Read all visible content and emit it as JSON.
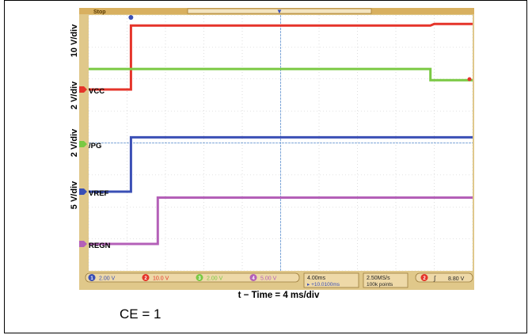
{
  "chart_data": {
    "type": "line",
    "title": "",
    "xlabel": "t − Time = 4 ms/div",
    "x_unit": "ms",
    "x_range": [
      0,
      40
    ],
    "divisions_x": 10,
    "divisions_y": 8,
    "grid": true,
    "series": [
      {
        "name": "VCC",
        "scale_label": "10 V/div",
        "color": "#e5342a",
        "points": [
          [
            0,
            0
          ],
          [
            4.4,
            0
          ],
          [
            4.4,
            2.0
          ],
          [
            35.6,
            2.0
          ],
          [
            36.0,
            2.05
          ],
          [
            40,
            2.05
          ]
        ]
      },
      {
        "name": "/PG",
        "scale_label": "2 V/div",
        "color": "#7ac943",
        "points": [
          [
            0,
            2.35
          ],
          [
            35.6,
            2.35
          ],
          [
            35.6,
            2.0
          ],
          [
            40,
            2.0
          ]
        ]
      },
      {
        "name": "VREF",
        "scale_label": "2 V/div",
        "color": "#3a4fb5",
        "points": [
          [
            0,
            0
          ],
          [
            4.4,
            0
          ],
          [
            4.4,
            1.7
          ],
          [
            40,
            1.7
          ]
        ]
      },
      {
        "name": "REGN",
        "scale_label": "5 V/div",
        "color": "#b460b8",
        "points": [
          [
            0,
            0
          ],
          [
            7.2,
            0
          ],
          [
            7.2,
            1.45
          ],
          [
            40,
            1.45
          ]
        ]
      }
    ]
  },
  "scope": {
    "run_state": "Stop",
    "channels": [
      {
        "id": "1",
        "value": "2.00 V",
        "color": "#3a4fb5"
      },
      {
        "id": "2",
        "value": "10.0 V",
        "color": "#e5342a"
      },
      {
        "id": "3",
        "value": "2.00 V",
        "color": "#7ac943"
      },
      {
        "id": "4",
        "value": "5.00 V",
        "color": "#b460b8"
      }
    ],
    "timebase": "4.00ms",
    "delay": "+10.0100ms",
    "sample_rate": "2.50MS/s",
    "record_length": "100k points",
    "trigger_channel": "2",
    "trigger_level": "8.80 V"
  },
  "caption": "CE = 1"
}
